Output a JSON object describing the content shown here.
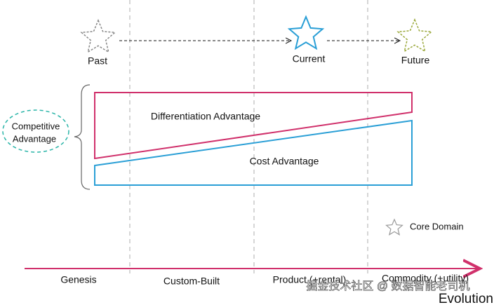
{
  "stages": {
    "past": "Past",
    "current": "Current",
    "future": "Future"
  },
  "competitive_advantage": [
    "Competitive",
    "Advantage"
  ],
  "areas": {
    "differentiation": "Differentiation Advantage",
    "cost": "Cost Advantage"
  },
  "legend": "Core Domain",
  "axis": {
    "phases": [
      "Genesis",
      "Custom-Built",
      "Product (+rental)",
      "Commodity (+utility)"
    ],
    "label": "Evolution"
  },
  "watermark": "掘金技术社区 @ 数据智能老司机"
}
